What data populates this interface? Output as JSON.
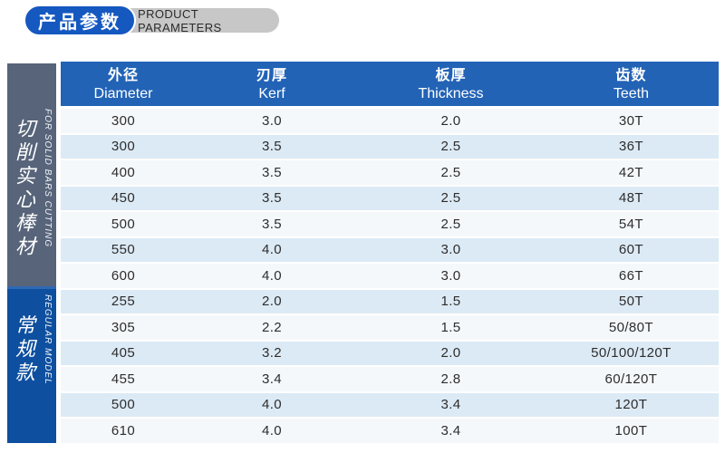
{
  "badge": {
    "title_zh": "产品参数",
    "title_en": "PRODUCT PARAMETERS"
  },
  "table": {
    "columns": [
      {
        "zh": "外径",
        "en": "Diameter"
      },
      {
        "zh": "刃厚",
        "en": "Kerf"
      },
      {
        "zh": "板厚",
        "en": "Thickness"
      },
      {
        "zh": "齿数",
        "en": "Teeth"
      }
    ],
    "sections": [
      {
        "label_zh": "切削实心棒材",
        "label_en": "FOR SOLID BARS CUTTING",
        "rows": [
          [
            "300",
            "3.0",
            "2.0",
            "30T"
          ],
          [
            "300",
            "3.5",
            "2.5",
            "36T"
          ],
          [
            "400",
            "3.5",
            "2.5",
            "42T"
          ],
          [
            "450",
            "3.5",
            "2.5",
            "48T"
          ],
          [
            "500",
            "3.5",
            "2.5",
            "54T"
          ],
          [
            "550",
            "4.0",
            "3.0",
            "60T"
          ],
          [
            "600",
            "4.0",
            "3.0",
            "66T"
          ]
        ]
      },
      {
        "label_zh": "常规款",
        "label_en": "REGULAR MODEL",
        "rows": [
          [
            "255",
            "2.0",
            "1.5",
            "50T"
          ],
          [
            "305",
            "2.2",
            "1.5",
            "50/80T"
          ],
          [
            "405",
            "3.2",
            "2.0",
            "50/100/120T"
          ],
          [
            "455",
            "3.4",
            "2.8",
            "60/120T"
          ],
          [
            "500",
            "4.0",
            "3.4",
            "120T"
          ],
          [
            "610",
            "4.0",
            "3.4",
            "100T"
          ]
        ]
      }
    ]
  },
  "colors": {
    "badge_blue": "#1558c0",
    "badge_gray": "#c7c7c7",
    "badge_text": "#2b2b2b",
    "header_blue": "#2263b6",
    "sidebar_slate": "#57647a",
    "sidebar_blue": "#0e4f9f",
    "sidebar_blue_highlight": "#2e6ab3",
    "row_light": "#f5f8fb",
    "row_alt": "#dceaf5",
    "cell_text": "#2d2d2d"
  }
}
